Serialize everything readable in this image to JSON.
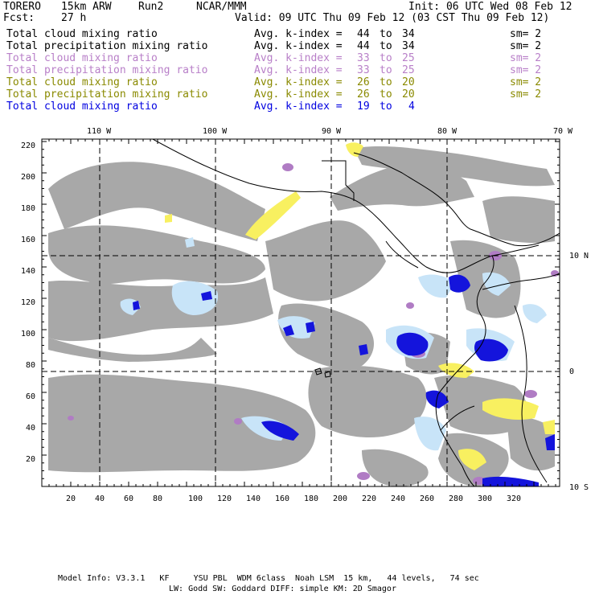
{
  "header": {
    "model": "TORERO",
    "resolution": "15km ARW",
    "run": "Run2",
    "org": "NCAR/MMM",
    "init": "Init: 06 UTC Wed 08 Feb 12",
    "fcst_label": "Fcst:",
    "fcst_value": "27 h",
    "valid": "Valid: 09 UTC Thu 09 Feb 12 (03 CST Thu 09 Feb 12)"
  },
  "legend": [
    {
      "field": "Total cloud mixing ratio",
      "index": "Avg. k-index =",
      "from": "44",
      "to_label": "to",
      "to": "34",
      "sm": "sm= 2",
      "color": "#000000"
    },
    {
      "field": "Total precipitation mixing ratio",
      "index": "Avg. k-index =",
      "from": "44",
      "to_label": "to",
      "to": "34",
      "sm": "sm= 2",
      "color": "#000000"
    },
    {
      "field": "Total cloud mixing ratio",
      "index": "Avg. k-index =",
      "from": "33",
      "to_label": "to",
      "to": "25",
      "sm": "sm= 2",
      "color": "#b87fc8"
    },
    {
      "field": "Total precipitation mixing ratio",
      "index": "Avg. k-index =",
      "from": "33",
      "to_label": "to",
      "to": "25",
      "sm": "sm= 2",
      "color": "#b87fc8"
    },
    {
      "field": "Total cloud mixing ratio",
      "index": "Avg. k-index =",
      "from": "26",
      "to_label": "to",
      "to": "20",
      "sm": "sm= 2",
      "color": "#8a8a00"
    },
    {
      "field": "Total precipitation mixing ratio",
      "index": "Avg. k-index =",
      "from": "26",
      "to_label": "to",
      "to": "20",
      "sm": "sm= 2",
      "color": "#8a8a00"
    },
    {
      "field": "Total cloud mixing ratio",
      "index": "Avg. k-index =",
      "from": "19",
      "to_label": "to",
      "to": "4",
      "sm": "",
      "color": "#0000e0"
    }
  ],
  "map": {
    "lon_labels": [
      "110 W",
      "100 W",
      "90 W",
      "80 W",
      "70 W"
    ],
    "lat_labels": [
      "10 N",
      "0",
      "10 S"
    ],
    "x_ticks": [
      "20",
      "40",
      "60",
      "80",
      "100",
      "120",
      "140",
      "160",
      "180",
      "200",
      "220",
      "240",
      "260",
      "280",
      "300",
      "320"
    ],
    "y_ticks": [
      "220",
      "200",
      "180",
      "160",
      "140",
      "120",
      "100",
      "80",
      "60",
      "40",
      "20"
    ],
    "colors": {
      "cloud_gray": "#a8a8a8",
      "light_blue": "#c8e4f8",
      "blue": "#1414dc",
      "purple": "#b07cc4",
      "yellow": "#f8f060",
      "frame": "#000000"
    }
  },
  "footer": {
    "line1": "Model Info: V3.3.1   KF     YSU PBL  WDM 6class  Noah LSM  15 km,   44 levels,   74 sec",
    "line2": "LW: Godd SW: Goddard DIFF: simple KM: 2D Smagor"
  }
}
